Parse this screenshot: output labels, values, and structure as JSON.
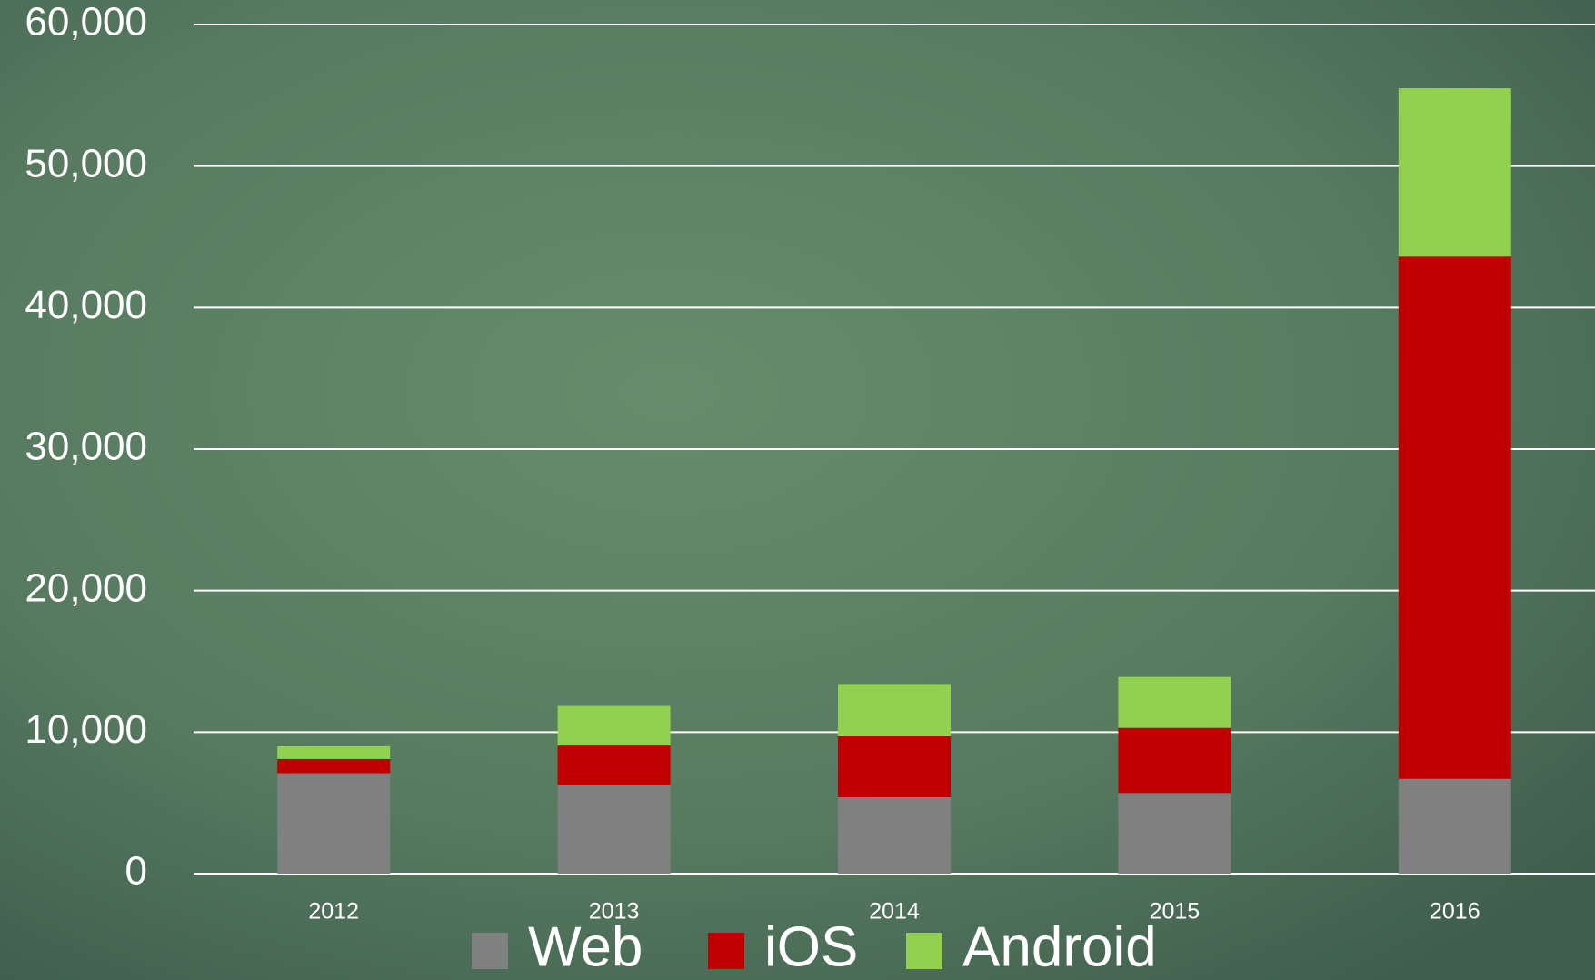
{
  "chart_data": {
    "type": "stacked_bar",
    "categories": [
      "2012",
      "2013",
      "2014",
      "2015",
      "2016"
    ],
    "series": [
      {
        "name": "Web",
        "color": "#808080",
        "values": [
          7100,
          6250,
          5400,
          5700,
          6700
        ]
      },
      {
        "name": "iOS",
        "color": "#c00000",
        "values": [
          1000,
          2800,
          4300,
          4600,
          36900
        ]
      },
      {
        "name": "Android",
        "color": "#92d050",
        "values": [
          900,
          2800,
          3700,
          3600,
          11900
        ]
      }
    ],
    "ylim": [
      0,
      60000
    ],
    "yticks": [
      0,
      {
        "value": 10000,
        "label": "10,000"
      },
      {
        "value": 20000,
        "label": "20,000"
      },
      {
        "value": 30000,
        "label": "30,000"
      },
      {
        "value": 40000,
        "label": "40,000"
      },
      {
        "value": 50000,
        "label": "50,000"
      },
      {
        "value": 60000,
        "label": "60,000"
      }
    ],
    "grid": true,
    "legend": "bottom"
  }
}
